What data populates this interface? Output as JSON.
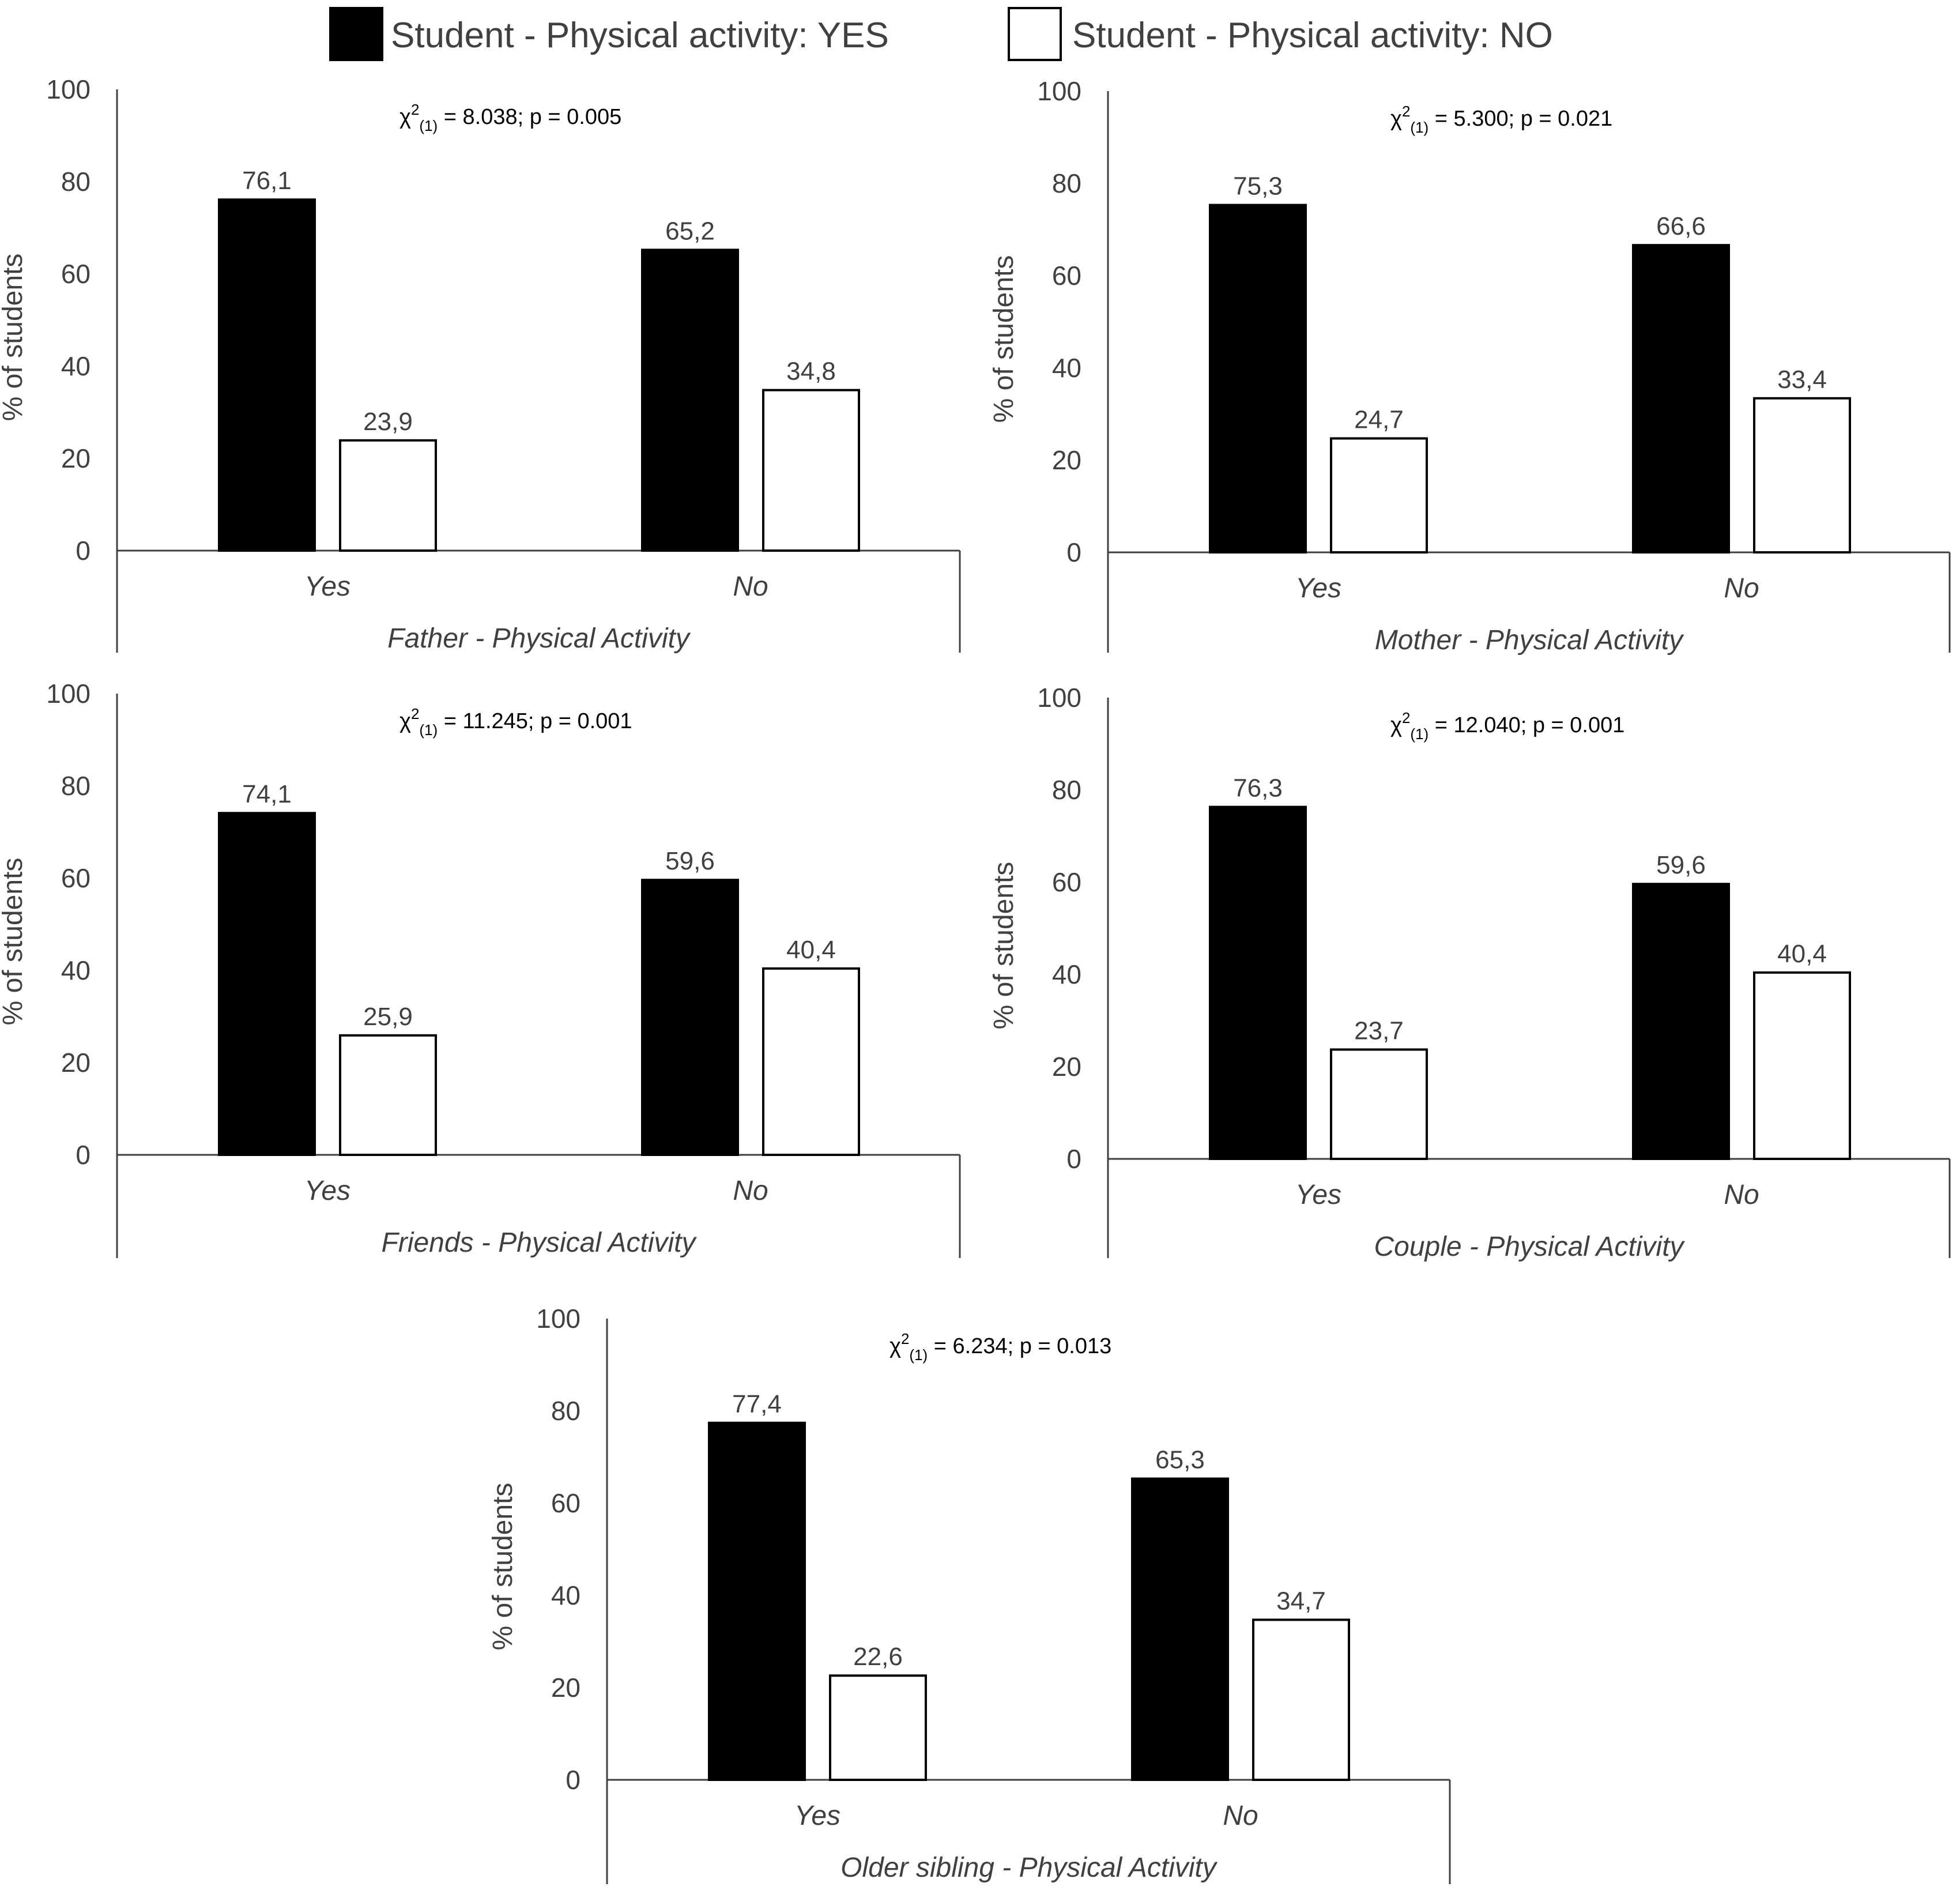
{
  "legend": {
    "items": [
      {
        "label": "Student - Physical activity: YES",
        "color": "#000000"
      },
      {
        "label": "Student - Physical activity: NO",
        "color": "#ffffff"
      }
    ]
  },
  "chart_data": [
    {
      "type": "bar",
      "xlabel": "Father - Physical Activity",
      "ylabel": "% of students",
      "ylim": [
        0,
        100
      ],
      "yticks": [
        0,
        20,
        40,
        60,
        80,
        100
      ],
      "categories": [
        "Yes",
        "No"
      ],
      "series": [
        {
          "name": "Student - Physical activity: YES",
          "values": [
            76.1,
            65.2
          ],
          "labels": [
            "76,1",
            "65,2"
          ]
        },
        {
          "name": "Student - Physical activity: NO",
          "values": [
            23.9,
            34.8
          ],
          "labels": [
            "23,9",
            "34,8"
          ]
        }
      ],
      "stat": {
        "chi": "χ",
        "sup": "2",
        "sub": "(1)",
        "rest": " = 8.038; p = 0.005"
      }
    },
    {
      "type": "bar",
      "xlabel": "Mother - Physical Activity",
      "ylabel": "% of students",
      "ylim": [
        0,
        100
      ],
      "yticks": [
        0,
        20,
        40,
        60,
        80,
        100
      ],
      "categories": [
        "Yes",
        "No"
      ],
      "series": [
        {
          "name": "Student - Physical activity: YES",
          "values": [
            75.3,
            66.6
          ],
          "labels": [
            "75,3",
            "66,6"
          ]
        },
        {
          "name": "Student - Physical activity: NO",
          "values": [
            24.7,
            33.4
          ],
          "labels": [
            "24,7",
            "33,4"
          ]
        }
      ],
      "stat": {
        "chi": "χ",
        "sup": "2",
        "sub": "(1)",
        "rest": " = 5.300; p = 0.021"
      }
    },
    {
      "type": "bar",
      "xlabel": "Friends - Physical Activity",
      "ylabel": "% of students",
      "ylim": [
        0,
        100
      ],
      "yticks": [
        0,
        20,
        40,
        60,
        80,
        100
      ],
      "categories": [
        "Yes",
        "No"
      ],
      "series": [
        {
          "name": "Student - Physical activity: YES",
          "values": [
            74.1,
            59.6
          ],
          "labels": [
            "74,1",
            "59,6"
          ]
        },
        {
          "name": "Student - Physical activity: NO",
          "values": [
            25.9,
            40.4
          ],
          "labels": [
            "25,9",
            "40,4"
          ]
        }
      ],
      "stat": {
        "chi": "χ",
        "sup": "2",
        "sub": "(1)",
        "rest": " = 11.245; p = 0.001"
      }
    },
    {
      "type": "bar",
      "xlabel": "Couple - Physical Activity",
      "ylabel": "% of students",
      "ylim": [
        0,
        100
      ],
      "yticks": [
        0,
        20,
        40,
        60,
        80,
        100
      ],
      "categories": [
        "Yes",
        "No"
      ],
      "series": [
        {
          "name": "Student - Physical activity: YES",
          "values": [
            76.3,
            59.6
          ],
          "labels": [
            "76,3",
            "59,6"
          ]
        },
        {
          "name": "Student - Physical activity: NO",
          "values": [
            23.7,
            40.4
          ],
          "labels": [
            "23,7",
            "40,4"
          ]
        }
      ],
      "stat": {
        "chi": "χ",
        "sup": "2",
        "sub": "(1)",
        "rest": " = 12.040; p = 0.001"
      }
    },
    {
      "type": "bar",
      "xlabel": "Older sibling - Physical Activity",
      "ylabel": "% of students",
      "ylim": [
        0,
        100
      ],
      "yticks": [
        0,
        20,
        40,
        60,
        80,
        100
      ],
      "categories": [
        "Yes",
        "No"
      ],
      "series": [
        {
          "name": "Student - Physical activity: YES",
          "values": [
            77.4,
            65.3
          ],
          "labels": [
            "77,4",
            "65,3"
          ]
        },
        {
          "name": "Student - Physical activity: NO",
          "values": [
            22.6,
            34.7
          ],
          "labels": [
            "22,6",
            "34,7"
          ]
        }
      ],
      "stat": {
        "chi": "χ",
        "sup": "2",
        "sub": "(1)",
        "rest": " = 6.234; p = 0.013"
      }
    }
  ]
}
